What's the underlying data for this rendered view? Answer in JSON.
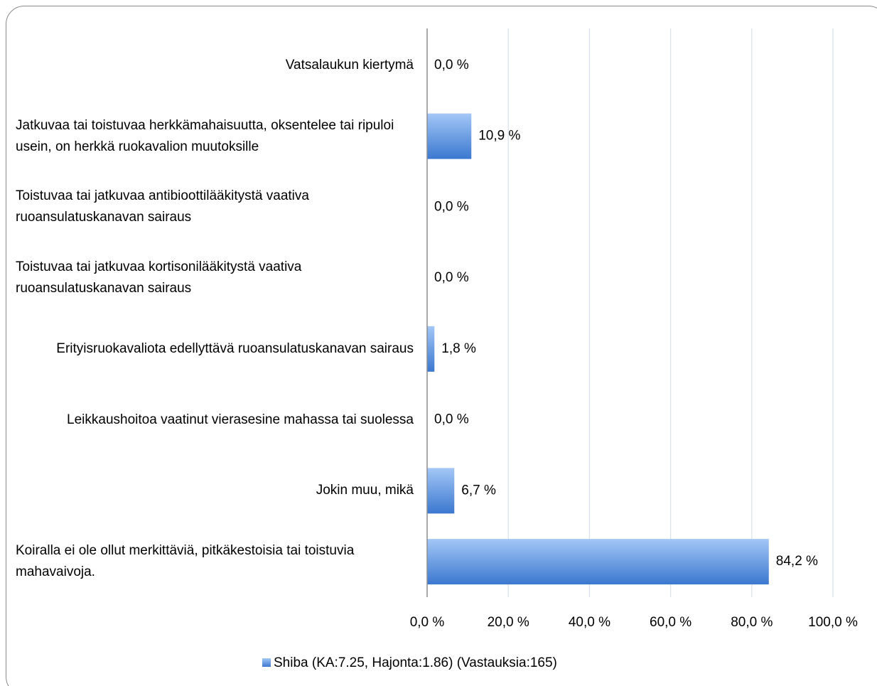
{
  "chart_data": {
    "type": "bar",
    "orientation": "horizontal",
    "categories": [
      "Vatsalaukun kiertymä",
      "Jatkuvaa tai toistuvaa herkkämahaisuutta, oksentelee tai ripuloi usein, on herkkä ruokavalion muutoksille",
      "Toistuvaa tai jatkuvaa antibioottilääkitystä vaativa ruoansulatuskanavan sairaus",
      "Toistuvaa tai jatkuvaa kortisonilääkitystä vaativa ruoansulatuskanavan sairaus",
      "Erityisruokavaliota edellyttävä ruoansulatuskanavan sairaus",
      "Leikkaushoitoa vaatinut vierasesine mahassa tai suolessa",
      "Jokin muu, mikä",
      "Koiralla ei ole ollut merkittäviä, pitkäkestoisia tai toistuvia mahavaivoja."
    ],
    "series": [
      {
        "name": "Shiba (KA:7.25, Hajonta:1.86) (Vastauksia:165)",
        "color": "#4a86d8",
        "values": [
          0,
          10.9,
          0,
          0,
          1.8,
          0,
          6.7,
          84.2
        ],
        "value_labels": [
          "0,0 %",
          "10,9 %",
          "0,0 %",
          "0,0 %",
          "1,8 %",
          "0,0 %",
          "6,7 %",
          "84,2 %"
        ]
      }
    ],
    "xlim": [
      0,
      100
    ],
    "xticks": [
      {
        "value": 0,
        "label": "0,0 %"
      },
      {
        "value": 20,
        "label": "20,0 %"
      },
      {
        "value": 40,
        "label": "40,0 %"
      },
      {
        "value": 60,
        "label": "60,0 %"
      },
      {
        "value": 80,
        "label": "80,0 %"
      },
      {
        "value": 100,
        "label": "100,0 %"
      }
    ],
    "grid": true,
    "legend": "bottom"
  }
}
